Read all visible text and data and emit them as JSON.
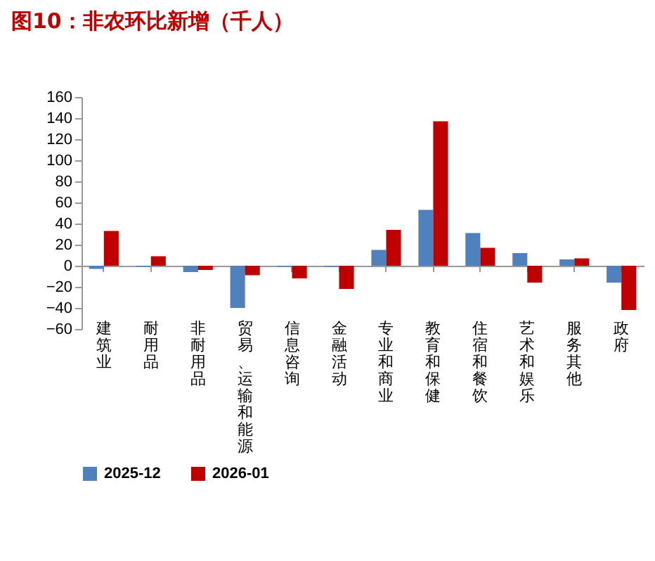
{
  "chart_data": {
    "type": "bar",
    "title": "图10：非农环比新增（千人）",
    "categories": [
      "建筑业",
      "耐用品",
      "非耐用品",
      "贸易、运输和能源",
      "信息咨询",
      "金融活动",
      "专业和商业",
      "教育和保健",
      "住宿和餐饮",
      "艺术和娱乐",
      "服务其他",
      "政府"
    ],
    "series": [
      {
        "name": "2025-12",
        "color": "#4f81bd",
        "values": [
          -3,
          -1,
          -6,
          -40,
          -1,
          -1,
          15,
          53,
          31,
          12,
          6,
          -16
        ]
      },
      {
        "name": "2026-01",
        "color": "#c00000",
        "values": [
          33,
          9,
          -4,
          -9,
          -12,
          -22,
          34,
          137,
          17,
          -16,
          7,
          -42
        ]
      }
    ],
    "ylim": [
      -60,
      160
    ],
    "yticks": [
      -60,
      -40,
      -20,
      0,
      20,
      40,
      60,
      80,
      100,
      120,
      140,
      160
    ],
    "legend": "bottom"
  }
}
